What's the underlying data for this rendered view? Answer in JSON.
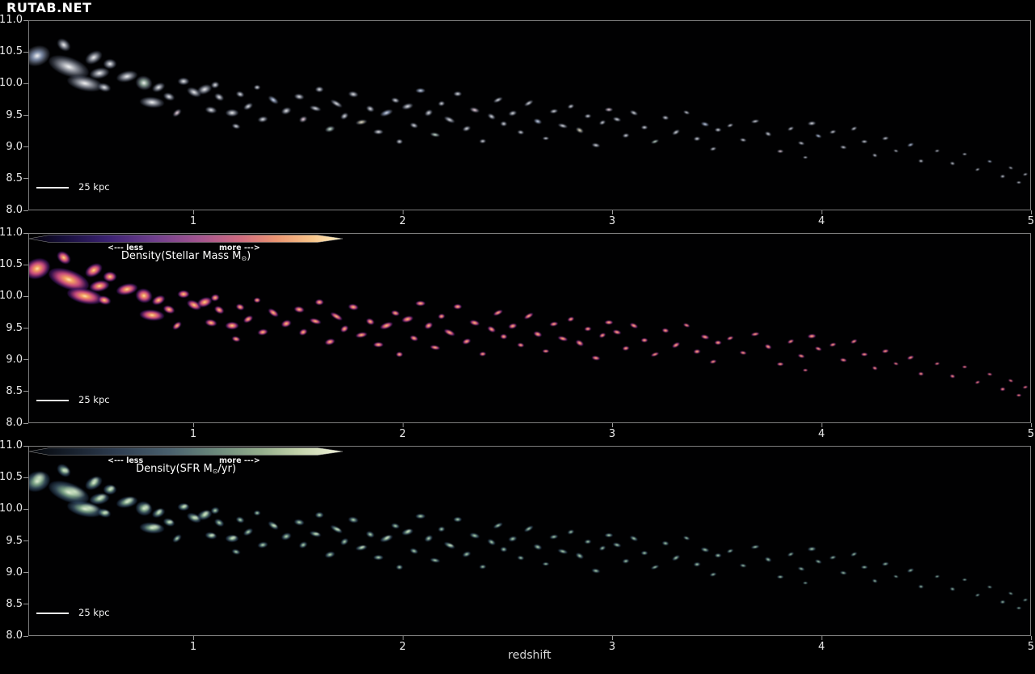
{
  "watermark": "RUTAB.NET",
  "axes": {
    "y_ticks": [
      "11.0",
      "10.5",
      "10.0",
      "9.5",
      "9.0",
      "8.5",
      "8.0"
    ],
    "x_ticks": [
      "1",
      "2",
      "3",
      "4",
      "5"
    ],
    "xlabel": "redshift"
  },
  "scalebar": {
    "label": "25 kpc"
  },
  "colorbars": [
    {
      "less": "<--- less",
      "more": "more --->",
      "label_pre": "Density(Stellar Mass M",
      "label_sub": "⊙",
      "label_post": ")",
      "stops": [
        [
          0,
          "#050308"
        ],
        [
          0.1,
          "#150e38"
        ],
        [
          0.25,
          "#3b2272"
        ],
        [
          0.4,
          "#703f8e"
        ],
        [
          0.54,
          "#a25490"
        ],
        [
          0.67,
          "#cf6a80"
        ],
        [
          0.79,
          "#ec9672"
        ],
        [
          0.9,
          "#f8c489"
        ],
        [
          1,
          "#fdf2c6"
        ]
      ]
    },
    {
      "less": "<--- less",
      "more": "more --->",
      "label_pre": "Density(SFR M",
      "label_sub": "⊙",
      "label_post": "/yr)",
      "stops": [
        [
          0,
          "#05070a"
        ],
        [
          0.12,
          "#151d29"
        ],
        [
          0.28,
          "#2e3d50"
        ],
        [
          0.45,
          "#4a616e"
        ],
        [
          0.6,
          "#6c8a7c"
        ],
        [
          0.74,
          "#94ae8c"
        ],
        [
          0.86,
          "#c3d3ab"
        ],
        [
          1,
          "#f2f3da"
        ]
      ]
    }
  ],
  "colors": {
    "background": "#000000",
    "axis_border": "#7d7d7d",
    "tick_text": "#eaeaea",
    "watermark": "#ffffff",
    "scalebar": "#e9e9e9"
  },
  "galaxy_palettes": {
    "rgb_core": "rgba(255,255,255,0.97)",
    "rgb_tints": [
      "rgba(205,210,222,0.72)",
      "rgba(175,195,232,0.72)",
      "rgba(222,192,210,0.72)",
      "rgba(185,218,198,0.72)",
      "rgba(222,215,180,0.72)"
    ],
    "mass": [
      "#ffeab5",
      "#f6a361",
      "#c64a7e",
      "rgba(84,26,118,0.60)"
    ],
    "sfr": [
      "rgba(238,250,224,0.95)",
      "rgba(158,208,170,0.78)",
      "rgba(88,128,158,0.50)",
      "rgba(28,52,88,0.28)",
      "rgba(225,245,210,0.85)"
    ]
  },
  "chart_data": {
    "type": "scatter",
    "title": "",
    "xlabel": "redshift",
    "ylabel": "",
    "xlim": [
      0.21,
      5.0
    ],
    "ylim": [
      8.0,
      11.0
    ],
    "x_ticks": [
      1,
      2,
      3,
      4,
      5
    ],
    "y_ticks": [
      11.0,
      10.5,
      10.0,
      9.5,
      9.0,
      8.5,
      8.0
    ],
    "grid": false,
    "panels": [
      {
        "row": 0,
        "content": "galaxy composite images",
        "colorbar": null
      },
      {
        "row": 1,
        "content": "Density(Stellar Mass M⊙)",
        "colorbar": "dark-purple-pink-cream arrow, less to more"
      },
      {
        "row": 2,
        "content": "Density(SFR M⊙/yr)",
        "colorbar": "dark-blue-green-cream arrow, less to more"
      }
    ],
    "points": [
      [
        0.25,
        10.45,
        16,
        0.75,
        -20,
        1
      ],
      [
        0.4,
        10.28,
        26,
        0.45,
        20,
        0
      ],
      [
        0.48,
        10.02,
        22,
        0.4,
        12,
        0
      ],
      [
        0.38,
        10.62,
        9,
        0.7,
        40,
        0
      ],
      [
        0.52,
        10.42,
        11,
        0.65,
        -30,
        0
      ],
      [
        0.55,
        10.18,
        12,
        0.55,
        -10,
        0
      ],
      [
        0.6,
        10.32,
        8,
        0.75,
        0,
        0
      ],
      [
        0.57,
        9.95,
        8,
        0.6,
        15,
        0
      ],
      [
        0.68,
        10.12,
        13,
        0.5,
        -12,
        0
      ],
      [
        0.76,
        10.02,
        10,
        0.85,
        15,
        3
      ],
      [
        0.83,
        9.95,
        8,
        0.6,
        -25,
        0
      ],
      [
        0.8,
        9.72,
        15,
        0.42,
        5,
        0
      ],
      [
        0.88,
        9.8,
        7,
        0.65,
        20,
        0
      ],
      [
        0.95,
        10.05,
        7,
        0.7,
        0,
        0
      ],
      [
        0.92,
        9.55,
        6,
        0.6,
        -40,
        2
      ],
      [
        1.0,
        9.88,
        9,
        0.55,
        25,
        0
      ],
      [
        1.05,
        9.92,
        9,
        0.6,
        -20,
        0
      ],
      [
        1.08,
        9.6,
        7,
        0.55,
        10,
        0
      ],
      [
        1.12,
        9.8,
        6,
        0.7,
        30,
        0
      ],
      [
        1.1,
        10.0,
        5,
        0.75,
        -15,
        0
      ],
      [
        1.18,
        9.55,
        8,
        0.55,
        0,
        0
      ],
      [
        1.22,
        9.85,
        5,
        0.7,
        20,
        0
      ],
      [
        1.26,
        9.65,
        6,
        0.6,
        -30,
        0
      ],
      [
        1.3,
        9.95,
        4,
        0.8,
        0,
        0
      ],
      [
        1.2,
        9.35,
        5,
        0.55,
        15,
        0
      ],
      [
        1.33,
        9.45,
        6,
        0.6,
        -10,
        0
      ],
      [
        1.38,
        9.75,
        7,
        0.5,
        35,
        1
      ],
      [
        1.44,
        9.58,
        6,
        0.65,
        -20,
        0
      ],
      [
        1.5,
        9.8,
        6,
        0.6,
        10,
        0
      ],
      [
        1.52,
        9.45,
        5,
        0.7,
        -25,
        2
      ],
      [
        1.58,
        9.62,
        7,
        0.45,
        15,
        0
      ],
      [
        1.6,
        9.92,
        5,
        0.65,
        0,
        0
      ],
      [
        1.65,
        9.3,
        6,
        0.55,
        -15,
        3
      ],
      [
        1.68,
        9.7,
        8,
        0.4,
        30,
        0
      ],
      [
        1.72,
        9.5,
        5,
        0.7,
        -35,
        0
      ],
      [
        1.76,
        9.85,
        6,
        0.55,
        10,
        0
      ],
      [
        1.8,
        9.4,
        7,
        0.45,
        -10,
        4
      ],
      [
        1.84,
        9.62,
        5,
        0.65,
        25,
        0
      ],
      [
        1.88,
        9.25,
        6,
        0.5,
        0,
        0
      ],
      [
        1.92,
        9.55,
        8,
        0.45,
        -20,
        1
      ],
      [
        1.96,
        9.75,
        5,
        0.6,
        15,
        0
      ],
      [
        1.98,
        9.1,
        4,
        0.7,
        0,
        0
      ],
      [
        2.02,
        9.65,
        7,
        0.5,
        -15,
        0
      ],
      [
        2.05,
        9.35,
        5,
        0.6,
        20,
        0
      ],
      [
        2.08,
        9.9,
        6,
        0.55,
        0,
        1
      ],
      [
        2.12,
        9.55,
        5,
        0.65,
        -30,
        0
      ],
      [
        2.15,
        9.2,
        6,
        0.45,
        10,
        3
      ],
      [
        2.18,
        9.7,
        4,
        0.7,
        -10,
        0
      ],
      [
        2.22,
        9.45,
        7,
        0.4,
        25,
        0
      ],
      [
        2.26,
        9.85,
        5,
        0.6,
        0,
        0
      ],
      [
        2.3,
        9.3,
        5,
        0.55,
        -20,
        0
      ],
      [
        2.34,
        9.6,
        6,
        0.5,
        15,
        2
      ],
      [
        2.38,
        9.1,
        4,
        0.65,
        -5,
        0
      ],
      [
        2.42,
        9.5,
        5,
        0.55,
        30,
        0
      ],
      [
        2.45,
        9.75,
        6,
        0.45,
        -25,
        0
      ],
      [
        2.48,
        9.38,
        4,
        0.7,
        5,
        0
      ],
      [
        2.52,
        9.55,
        5,
        0.55,
        -15,
        0
      ],
      [
        2.56,
        9.25,
        4,
        0.6,
        10,
        0
      ],
      [
        2.6,
        9.7,
        6,
        0.45,
        -30,
        0
      ],
      [
        2.64,
        9.42,
        5,
        0.6,
        20,
        1
      ],
      [
        2.68,
        9.15,
        4,
        0.55,
        0,
        0
      ],
      [
        2.72,
        9.58,
        5,
        0.5,
        -10,
        0
      ],
      [
        2.76,
        9.35,
        6,
        0.4,
        15,
        0
      ],
      [
        2.8,
        9.65,
        4,
        0.65,
        -20,
        0
      ],
      [
        2.84,
        9.28,
        5,
        0.55,
        30,
        4
      ],
      [
        2.88,
        9.5,
        4,
        0.6,
        -5,
        0
      ],
      [
        2.92,
        9.05,
        5,
        0.45,
        10,
        0
      ],
      [
        2.95,
        9.4,
        4,
        0.6,
        -25,
        0
      ],
      [
        2.98,
        9.6,
        5,
        0.5,
        0,
        2
      ],
      [
        3.02,
        9.45,
        5,
        0.5,
        15,
        0
      ],
      [
        3.06,
        9.2,
        4,
        0.6,
        -10,
        0
      ],
      [
        3.1,
        9.55,
        5,
        0.45,
        25,
        0
      ],
      [
        3.15,
        9.32,
        4,
        0.55,
        0,
        0
      ],
      [
        3.2,
        9.1,
        5,
        0.4,
        -20,
        3
      ],
      [
        3.25,
        9.48,
        4,
        0.6,
        10,
        0
      ],
      [
        3.3,
        9.25,
        5,
        0.5,
        -30,
        0
      ],
      [
        3.35,
        9.55,
        4,
        0.55,
        20,
        0
      ],
      [
        3.4,
        9.15,
        4,
        0.6,
        -5,
        0
      ],
      [
        3.44,
        9.38,
        5,
        0.45,
        15,
        1
      ],
      [
        3.48,
        8.98,
        4,
        0.55,
        -15,
        0
      ],
      [
        3.5,
        9.28,
        4,
        0.6,
        0,
        0
      ],
      [
        3.56,
        9.35,
        4,
        0.5,
        -20,
        0
      ],
      [
        3.62,
        9.12,
        4,
        0.55,
        10,
        0
      ],
      [
        3.68,
        9.42,
        5,
        0.4,
        -10,
        0
      ],
      [
        3.74,
        9.22,
        4,
        0.6,
        25,
        0
      ],
      [
        3.8,
        8.95,
        4,
        0.5,
        0,
        2
      ],
      [
        3.85,
        9.3,
        4,
        0.55,
        -25,
        0
      ],
      [
        3.9,
        9.08,
        4,
        0.45,
        15,
        0
      ],
      [
        3.95,
        9.38,
        5,
        0.5,
        -5,
        0
      ],
      [
        3.98,
        9.18,
        4,
        0.55,
        20,
        1
      ],
      [
        3.92,
        8.85,
        3,
        0.6,
        0,
        0
      ],
      [
        4.05,
        9.25,
        4,
        0.5,
        -15,
        0
      ],
      [
        4.1,
        9.0,
        4,
        0.55,
        10,
        0
      ],
      [
        4.15,
        9.3,
        4,
        0.45,
        -25,
        0
      ],
      [
        4.2,
        9.1,
        4,
        0.55,
        0,
        0
      ],
      [
        4.25,
        8.88,
        3,
        0.6,
        20,
        0
      ],
      [
        4.3,
        9.15,
        4,
        0.5,
        -10,
        0
      ],
      [
        4.35,
        8.95,
        3,
        0.55,
        15,
        0
      ],
      [
        4.42,
        9.05,
        4,
        0.45,
        -20,
        1
      ],
      [
        4.47,
        8.8,
        3,
        0.6,
        5,
        0
      ],
      [
        4.55,
        8.95,
        3,
        0.55,
        -10,
        0
      ],
      [
        4.62,
        8.75,
        3,
        0.6,
        15,
        0
      ],
      [
        4.68,
        8.9,
        3,
        0.5,
        0,
        0
      ],
      [
        4.74,
        8.65,
        3,
        0.55,
        -20,
        0
      ],
      [
        4.8,
        8.78,
        3,
        0.5,
        10,
        1
      ],
      [
        4.86,
        8.55,
        3,
        0.6,
        -5,
        0
      ],
      [
        4.9,
        8.68,
        3,
        0.5,
        20,
        0
      ],
      [
        4.94,
        8.45,
        3,
        0.55,
        0,
        0
      ],
      [
        4.97,
        8.58,
        3,
        0.5,
        -15,
        0
      ]
    ]
  }
}
